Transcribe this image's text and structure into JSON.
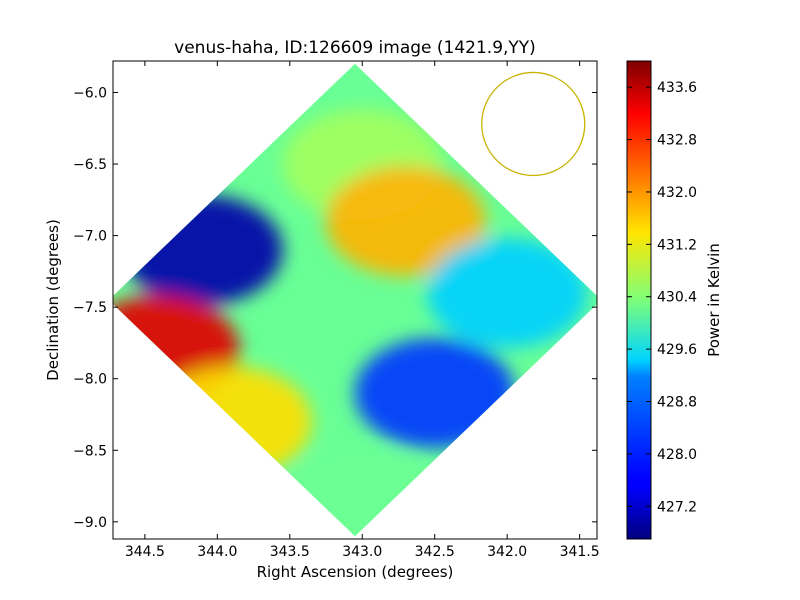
{
  "chart_data": {
    "type": "heatmap",
    "title": "venus-haha, ID:126609 image (1421.9,YY)",
    "xlabel": "Right Ascension (degrees)",
    "ylabel": "Declination (degrees)",
    "xlim": [
      344.72,
      341.38
    ],
    "ylim": [
      -9.12,
      -5.78
    ],
    "x_ticks": [
      "344.5",
      "344.0",
      "343.5",
      "343.0",
      "342.5",
      "342.0",
      "341.5"
    ],
    "x_tick_values": [
      344.5,
      344.0,
      343.5,
      343.0,
      342.5,
      342.0,
      341.5
    ],
    "y_ticks": [
      "−6.0",
      "−6.5",
      "−7.0",
      "−7.5",
      "−8.0",
      "−8.5",
      "−9.0"
    ],
    "y_tick_values": [
      -6.0,
      -6.5,
      -7.0,
      -7.5,
      -8.0,
      -8.5,
      -9.0
    ],
    "colorbar": {
      "label": "Power in Kelvin",
      "range": [
        426.7,
        434.0
      ],
      "ticks": [
        "433.6",
        "432.8",
        "432.0",
        "431.2",
        "430.4",
        "429.6",
        "428.8",
        "428.0",
        "427.2"
      ],
      "tick_values": [
        433.6,
        432.8,
        432.0,
        431.2,
        430.4,
        429.6,
        428.8,
        428.0,
        427.2
      ],
      "colormap": "jet"
    },
    "image_footprint": {
      "shape": "diamond",
      "center": [
        343.05,
        -7.45
      ],
      "half_width_ra": 1.7,
      "half_height_dec": 1.65
    },
    "regions": [
      {
        "area": "west lobe (upper-left band)",
        "ra": 344.1,
        "dec": -7.1,
        "value": 427.0
      },
      {
        "area": "west lobe (lower-left band)",
        "ra": 344.4,
        "dec": -7.8,
        "value": 433.3
      },
      {
        "area": "southwest",
        "ra": 343.9,
        "dec": -8.3,
        "value": 431.5
      },
      {
        "area": "north",
        "ra": 343.0,
        "dec": -6.5,
        "value": 430.6
      },
      {
        "area": "north-east inner",
        "ra": 342.7,
        "dec": -6.9,
        "value": 431.8
      },
      {
        "area": "east lobe",
        "ra": 342.0,
        "dec": -7.4,
        "value": 429.1
      },
      {
        "area": "south-east lobe",
        "ra": 342.5,
        "dec": -8.1,
        "value": 428.0
      },
      {
        "area": "south",
        "ra": 343.0,
        "dec": -8.9,
        "value": 430.2
      }
    ],
    "beam": {
      "center": [
        341.82,
        -6.22
      ],
      "radius_dec": 0.36,
      "color": "#c8b400"
    },
    "grid": false,
    "legend": "none"
  }
}
